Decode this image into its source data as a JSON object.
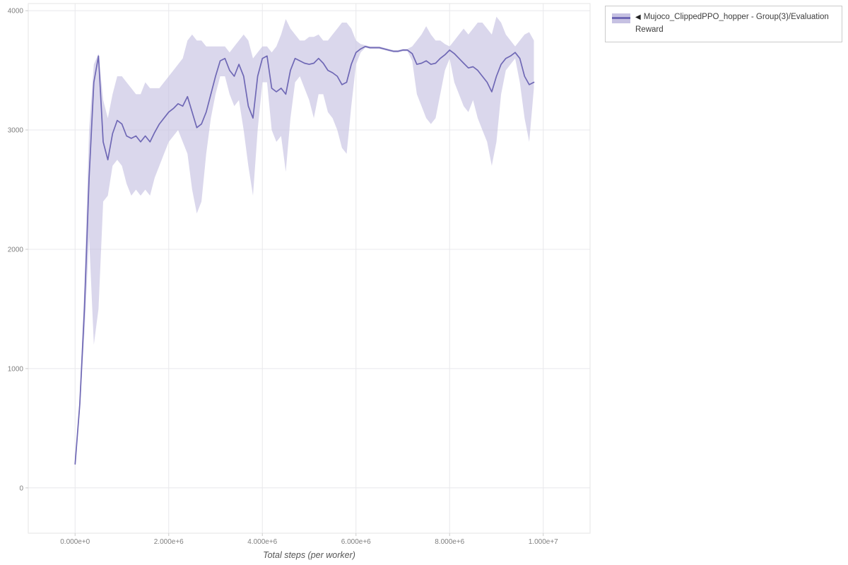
{
  "page": {
    "background": "#ffffff"
  },
  "legend": {
    "arrow": "◀",
    "label": "Mujoco_ClippedPPO_hopper - Group(3)/Evaluation Reward"
  },
  "chart_data": {
    "type": "line",
    "title": "",
    "xlabel": "Total steps (per worker)",
    "ylabel": "",
    "grid": true,
    "legend_position": "top-right-outside",
    "xlim": [
      -1000000,
      11000000
    ],
    "ylim": [
      -380,
      4060
    ],
    "xticks": {
      "values": [
        0,
        2000000,
        4000000,
        6000000,
        8000000,
        10000000
      ],
      "labels": [
        "0.000e+0",
        "2.000e+6",
        "4.000e+6",
        "6.000e+6",
        "8.000e+6",
        "1.000e+7"
      ]
    },
    "yticks": {
      "values": [
        0,
        1000,
        2000,
        3000,
        4000
      ],
      "labels": [
        "0",
        "1000",
        "2000",
        "3000",
        "4000"
      ]
    },
    "colors": {
      "line": "#6f68b5",
      "band": "#c6c1e2",
      "band_opacity": 0.65,
      "grid": "#e8e8ec",
      "outline": "#e5e5e5",
      "tick_text": "#7f7f7f",
      "tick_mark": "#cccccc",
      "axis_title": "#555555",
      "legend_border": "#cbcbcb"
    },
    "series": [
      {
        "name": "Mujoco_ClippedPPO_hopper - Group(3)/Evaluation Reward",
        "x": [
          0,
          100000.0,
          200000.0,
          300000.0,
          400000.0,
          500000.0,
          600000.0,
          700000.0,
          800000.0,
          900000.0,
          1000000.0,
          1100000.0,
          1200000.0,
          1300000.0,
          1400000.0,
          1500000.0,
          1600000.0,
          1700000.0,
          1800000.0,
          1900000.0,
          2000000.0,
          2100000.0,
          2200000.0,
          2300000.0,
          2400000.0,
          2500000.0,
          2600000.0,
          2700000.0,
          2800000.0,
          2900000.0,
          3000000.0,
          3100000.0,
          3200000.0,
          3300000.0,
          3400000.0,
          3500000.0,
          3600000.0,
          3700000.0,
          3800000.0,
          3900000.0,
          4000000.0,
          4100000.0,
          4200000.0,
          4300000.0,
          4400000.0,
          4500000.0,
          4600000.0,
          4700000.0,
          4800000.0,
          4900000.0,
          5000000.0,
          5100000.0,
          5200000.0,
          5300000.0,
          5400000.0,
          5500000.0,
          5600000.0,
          5700000.0,
          5800000.0,
          5900000.0,
          6000000.0,
          6100000.0,
          6200000.0,
          6300000.0,
          6400000.0,
          6500000.0,
          6600000.0,
          6700000.0,
          6800000.0,
          6900000.0,
          7000000.0,
          7100000.0,
          7200000.0,
          7300000.0,
          7400000.0,
          7500000.0,
          7600000.0,
          7700000.0,
          7800000.0,
          7900000.0,
          8000000.0,
          8100000.0,
          8200000.0,
          8300000.0,
          8400000.0,
          8500000.0,
          8600000.0,
          8700000.0,
          8800000.0,
          8900000.0,
          9000000.0,
          9100000.0,
          9200000.0,
          9300000.0,
          9400000.0,
          9500000.0,
          9600000.0,
          9700000.0,
          9800000.0
        ],
        "mean": [
          200,
          700,
          1500,
          2600,
          3400,
          3620,
          2900,
          2750,
          2970,
          3080,
          3050,
          2950,
          2930,
          2950,
          2900,
          2950,
          2900,
          2980,
          3050,
          3100,
          3150,
          3180,
          3220,
          3200,
          3280,
          3150,
          3020,
          3050,
          3150,
          3300,
          3450,
          3580,
          3600,
          3500,
          3450,
          3550,
          3450,
          3200,
          3100,
          3450,
          3600,
          3620,
          3350,
          3320,
          3350,
          3300,
          3500,
          3600,
          3580,
          3560,
          3550,
          3560,
          3600,
          3560,
          3500,
          3480,
          3450,
          3380,
          3400,
          3550,
          3650,
          3680,
          3700,
          3690,
          3690,
          3690,
          3680,
          3670,
          3660,
          3660,
          3670,
          3670,
          3640,
          3550,
          3560,
          3580,
          3550,
          3560,
          3600,
          3630,
          3670,
          3640,
          3600,
          3560,
          3520,
          3530,
          3500,
          3450,
          3400,
          3320,
          3450,
          3550,
          3600,
          3620,
          3650,
          3600,
          3450,
          3380,
          3400
        ],
        "upper": [
          210,
          760,
          1700,
          3000,
          3550,
          3640,
          3250,
          3100,
          3300,
          3450,
          3450,
          3400,
          3350,
          3300,
          3300,
          3400,
          3350,
          3350,
          3350,
          3400,
          3450,
          3500,
          3550,
          3600,
          3750,
          3800,
          3750,
          3750,
          3700,
          3700,
          3700,
          3700,
          3700,
          3650,
          3700,
          3750,
          3800,
          3750,
          3600,
          3650,
          3700,
          3700,
          3650,
          3700,
          3800,
          3930,
          3850,
          3800,
          3750,
          3750,
          3780,
          3780,
          3800,
          3750,
          3750,
          3800,
          3850,
          3900,
          3900,
          3850,
          3750,
          3720,
          3710,
          3700,
          3700,
          3700,
          3690,
          3680,
          3670,
          3670,
          3680,
          3680,
          3700,
          3750,
          3800,
          3870,
          3800,
          3750,
          3750,
          3720,
          3700,
          3750,
          3800,
          3850,
          3800,
          3850,
          3900,
          3900,
          3850,
          3800,
          3950,
          3900,
          3800,
          3750,
          3700,
          3750,
          3800,
          3820,
          3750
        ],
        "lower": [
          190,
          640,
          1300,
          2100,
          1200,
          1500,
          2400,
          2450,
          2700,
          2750,
          2700,
          2550,
          2450,
          2500,
          2450,
          2500,
          2450,
          2600,
          2700,
          2800,
          2900,
          2950,
          3000,
          2900,
          2800,
          2500,
          2300,
          2400,
          2800,
          3100,
          3300,
          3450,
          3450,
          3300,
          3200,
          3250,
          3000,
          2700,
          2450,
          3000,
          3400,
          3400,
          3000,
          2900,
          2950,
          2650,
          3100,
          3400,
          3450,
          3350,
          3250,
          3100,
          3300,
          3300,
          3150,
          3100,
          3000,
          2850,
          2800,
          3200,
          3550,
          3650,
          3690,
          3680,
          3680,
          3680,
          3670,
          3660,
          3650,
          3650,
          3660,
          3660,
          3580,
          3300,
          3200,
          3100,
          3050,
          3100,
          3300,
          3500,
          3600,
          3400,
          3300,
          3200,
          3150,
          3250,
          3100,
          3000,
          2900,
          2700,
          2900,
          3300,
          3500,
          3550,
          3600,
          3400,
          3100,
          2900,
          3350
        ]
      }
    ]
  }
}
